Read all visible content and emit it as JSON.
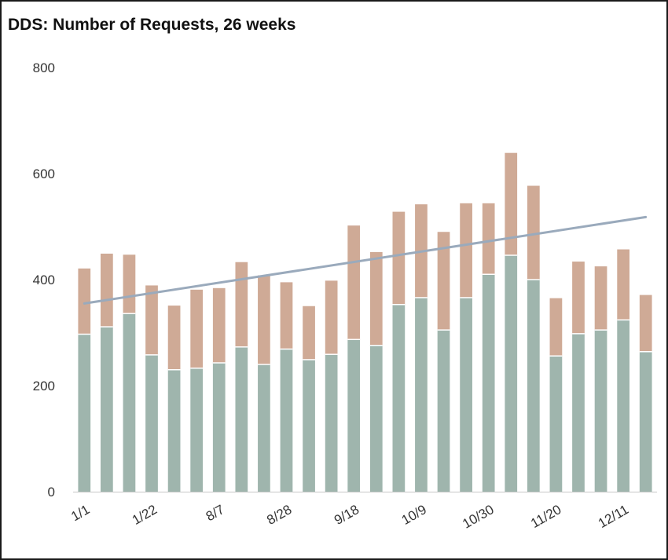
{
  "chart_data": {
    "type": "bar",
    "stacked": true,
    "title": "DDS: Number of Requests, 26 weeks",
    "xlabel": "",
    "ylabel": "",
    "ylim": [
      0,
      800
    ],
    "yticks": [
      0,
      200,
      400,
      600,
      800
    ],
    "tick_labels": [
      "1/1",
      "1/22",
      "8/7",
      "8/28",
      "9/18",
      "10/9",
      "10/30",
      "11/20",
      "12/11"
    ],
    "tick_label_every": 3,
    "grid": false,
    "legend": "none",
    "series": [
      {
        "color": "#9fb5ad",
        "values": [
          297,
          311,
          336,
          258,
          230,
          233,
          243,
          273,
          240,
          269,
          249,
          259,
          287,
          276,
          353,
          366,
          305,
          366,
          410,
          446,
          400,
          256,
          298,
          305,
          324,
          264
        ]
      },
      {
        "color": "#cfaa96",
        "values": [
          124,
          138,
          111,
          131,
          121,
          148,
          141,
          160,
          168,
          126,
          101,
          139,
          215,
          176,
          175,
          176,
          185,
          178,
          134,
          193,
          177,
          109,
          136,
          120,
          133,
          107
        ]
      }
    ],
    "trend": {
      "color": "#9aaabc",
      "start": 355,
      "end": 518
    }
  },
  "colors": {
    "lower": "#9fb5ad",
    "upper": "#cfaa96",
    "trend": "#9aaabc",
    "axis": "#333333",
    "frame": "#1a1a1a"
  }
}
